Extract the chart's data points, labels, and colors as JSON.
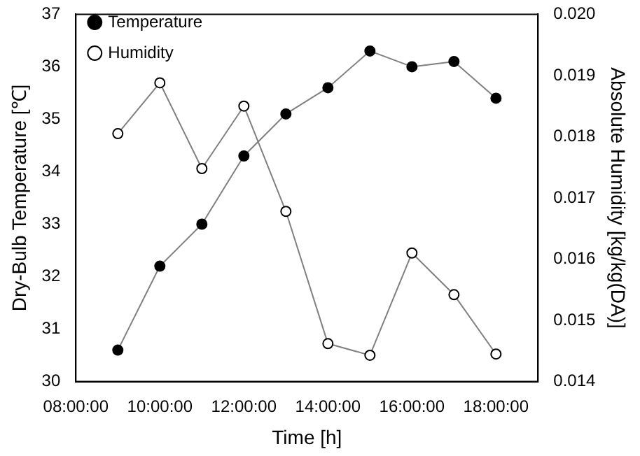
{
  "chart_data": {
    "type": "line",
    "xlabel": "Time [h]",
    "ylabel": "Dry-Bulb Temperature [℃]",
    "y2label": "Absolute Humidity [kg/kg(DA)]",
    "x": [
      9,
      10,
      11,
      12,
      13,
      14,
      15,
      16,
      17,
      18
    ],
    "series": [
      {
        "name": "Temperature",
        "color": "#000000",
        "marker": "circle",
        "values": [
          30.6,
          32.2,
          33.0,
          34.3,
          35.1,
          35.6,
          36.3,
          36.0,
          36.1,
          35.4
        ]
      },
      {
        "name": "Humidity",
        "color": "#ffffff",
        "marker": "circle",
        "axis": "y2",
        "values": [
          0.01805,
          0.01888,
          0.01748,
          0.0185,
          0.01678,
          0.01462,
          0.01443,
          0.0161,
          0.01542,
          0.01445
        ]
      }
    ],
    "xlim": [
      8,
      19
    ],
    "xticks": [
      {
        "value": 8,
        "label": "08:00:00"
      },
      {
        "value": 10,
        "label": "10:00:00"
      },
      {
        "value": 12,
        "label": "12:00:00"
      },
      {
        "value": 14,
        "label": "14:00:00"
      },
      {
        "value": 16,
        "label": "16:00:00"
      },
      {
        "value": 18,
        "label": "18:00:00"
      }
    ],
    "ylim": [
      30,
      37
    ],
    "yticks": [
      30,
      31,
      32,
      33,
      34,
      35,
      36,
      37
    ],
    "y2lim": [
      0.014,
      0.02
    ],
    "y2ticks": [
      0.014,
      0.015,
      0.016,
      0.017,
      0.018,
      0.019,
      {
        "value": 0.02,
        "label": "0.020"
      }
    ],
    "grid": false,
    "legend": "top left",
    "line_style": "solid"
  }
}
